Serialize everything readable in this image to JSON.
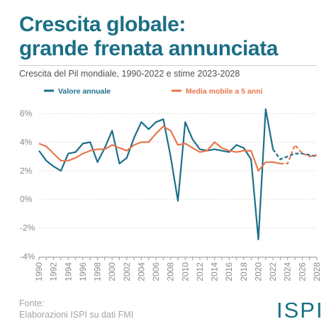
{
  "header": {
    "title_line1": "Crescita globale:",
    "title_line2": "grande frenata annunciata",
    "subtitle": "Crescita del Pil mondiale, 1990-2022 e stime 2023-2028"
  },
  "footer": {
    "source_label": "Fonte:",
    "source_text": "Elaborazioni ISPI su dati FMI",
    "logo_text": "ISPI"
  },
  "colors": {
    "title": "#1b6f86",
    "series_annual": "#1d6f89",
    "series_mavg": "#e8764a",
    "axis_text": "#8a8a8a",
    "logo": "#1b6f86"
  },
  "chart_data": {
    "type": "line",
    "x": [
      1990,
      1991,
      1992,
      1993,
      1994,
      1995,
      1996,
      1997,
      1998,
      1999,
      2000,
      2001,
      2002,
      2003,
      2004,
      2005,
      2006,
      2007,
      2008,
      2009,
      2010,
      2011,
      2012,
      2013,
      2014,
      2015,
      2016,
      2017,
      2018,
      2019,
      2020,
      2021,
      2022,
      2023,
      2024,
      2025,
      2026,
      2027,
      2028
    ],
    "series": [
      {
        "name": "Valore annuale",
        "color": "#1d6f89",
        "projection_from": 2022,
        "values": [
          3.4,
          2.7,
          2.3,
          2.0,
          3.2,
          3.3,
          3.9,
          4.0,
          2.6,
          3.6,
          4.8,
          2.5,
          2.9,
          4.3,
          5.4,
          4.9,
          5.4,
          5.6,
          3.0,
          -0.1,
          5.4,
          4.2,
          3.5,
          3.4,
          3.5,
          3.4,
          3.3,
          3.8,
          3.6,
          2.8,
          -2.8,
          6.3,
          3.5,
          2.8,
          3.0,
          3.2,
          3.2,
          3.1,
          3.0
        ]
      },
      {
        "name": "Media mobile a 5 anni",
        "color": "#e8764a",
        "projection_from": 2023,
        "values": [
          3.9,
          3.7,
          3.2,
          2.7,
          2.7,
          2.9,
          3.2,
          3.4,
          3.5,
          3.5,
          3.8,
          3.6,
          3.4,
          3.8,
          4.0,
          4.0,
          4.6,
          5.1,
          4.8,
          3.8,
          3.9,
          3.6,
          3.3,
          3.4,
          4.0,
          3.6,
          3.4,
          3.3,
          3.4,
          3.4,
          2.0,
          2.6,
          2.6,
          2.5,
          2.5,
          3.8,
          3.2,
          3.0,
          3.1
        ]
      }
    ],
    "ylim": [
      -4,
      6.5
    ],
    "yticks": [
      "6%",
      "4%",
      "2%",
      "0%",
      "-2%",
      "-4%"
    ],
    "ytick_values": [
      6,
      4,
      2,
      0,
      -2,
      -4
    ],
    "xticks": [
      "1990",
      "1992",
      "1994",
      "1996",
      "1998",
      "2000",
      "2002",
      "2004",
      "2006",
      "2008",
      "2010",
      "2012",
      "2014",
      "2016",
      "2018",
      "2020",
      "2022",
      "2024",
      "2026",
      "2028"
    ],
    "grid": true,
    "legend_position": "top"
  }
}
